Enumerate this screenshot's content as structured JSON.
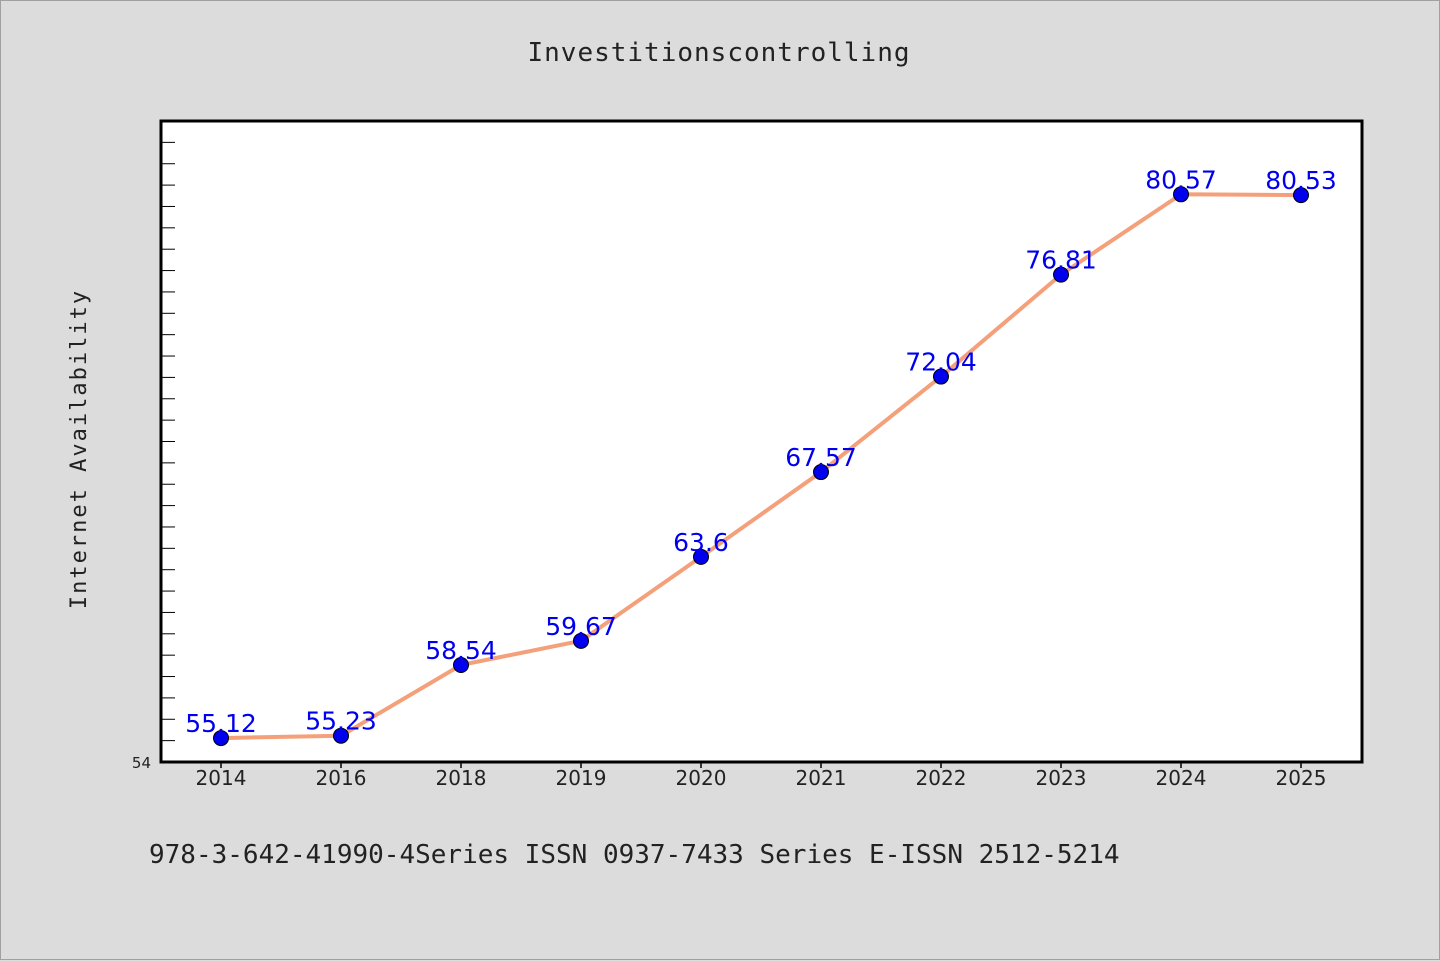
{
  "chart_data": {
    "type": "line",
    "title": "Investitionscontrolling",
    "xlabel": "",
    "ylabel": "Internet Availability",
    "categories": [
      "2014",
      "2016",
      "2018",
      "2019",
      "2020",
      "2021",
      "2022",
      "2023",
      "2024",
      "2025"
    ],
    "series": [
      {
        "values": [
          55.12,
          55.23,
          58.54,
          59.67,
          63.6,
          67.57,
          72.04,
          76.81,
          80.57,
          80.53
        ],
        "labels": [
          "55.12",
          "55.23",
          "58.54",
          "59.67",
          "63.6",
          "67.57",
          "72.04",
          "76.81",
          "80.57",
          "80.53"
        ]
      }
    ],
    "ylim": [
      54,
      84
    ],
    "y_tick_labels": [
      "54"
    ],
    "grid": false,
    "line_color": "#f4a07a",
    "marker_color": "#0000ee",
    "label_color": "#0000ee"
  },
  "footer": {
    "text": "978-3-642-41990-4Series ISSN 0937-7433 Series E-ISSN 2512-5214"
  }
}
